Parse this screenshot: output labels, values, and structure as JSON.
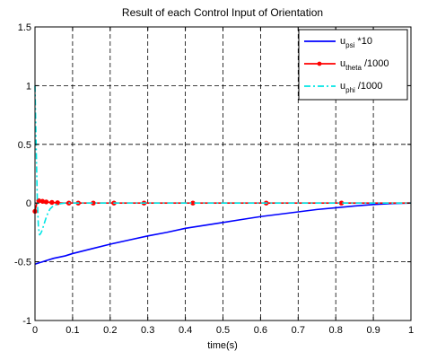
{
  "chart_data": {
    "type": "line",
    "title": "Result of each Control Input of Orientation",
    "xlabel": "time(s)",
    "ylabel": "",
    "xlim": [
      0,
      1
    ],
    "ylim": [
      -1,
      1.5
    ],
    "xticks": [
      0,
      0.1,
      0.2,
      0.3,
      0.4,
      0.5,
      0.6,
      0.7,
      0.8,
      0.9,
      1
    ],
    "xtick_labels": [
      "0",
      "0.1",
      "0.2",
      "0.3",
      "0.4",
      "0.5",
      "0.6",
      "0.7",
      "0.8",
      "0.9",
      "1"
    ],
    "yticks": [
      -1,
      -0.5,
      0,
      0.5,
      1,
      1.5
    ],
    "ytick_labels": [
      "-1",
      "-0.5",
      "0",
      "0.5",
      "1",
      "1.5"
    ],
    "grid": true,
    "grid_style": "dashed",
    "legend_position": "top-right",
    "series": [
      {
        "legend_main": "u",
        "legend_sub": "psi",
        "legend_suffix": " *10",
        "color": "#0000ff",
        "style": "solid",
        "marker": "none",
        "x": [
          0,
          0.01,
          0.02,
          0.03,
          0.05,
          0.08,
          0.1,
          0.15,
          0.2,
          0.25,
          0.3,
          0.35,
          0.4,
          0.45,
          0.5,
          0.55,
          0.6,
          0.65,
          0.7,
          0.75,
          0.8,
          0.85,
          0.9,
          0.95,
          1.0
        ],
        "y": [
          -0.52,
          -0.51,
          -0.5,
          -0.49,
          -0.47,
          -0.45,
          -0.43,
          -0.39,
          -0.35,
          -0.315,
          -0.28,
          -0.25,
          -0.215,
          -0.19,
          -0.165,
          -0.14,
          -0.115,
          -0.095,
          -0.075,
          -0.055,
          -0.04,
          -0.025,
          -0.012,
          -0.004,
          0.0
        ]
      },
      {
        "legend_main": "u",
        "legend_sub": "theta",
        "legend_suffix": " /1000",
        "color": "#ff0000",
        "style": "solid",
        "marker": "dot",
        "x": [
          0,
          0.005,
          0.01,
          0.02,
          0.03,
          0.04,
          0.05,
          0.06,
          0.08,
          0.1,
          0.15,
          0.2,
          0.3,
          0.42,
          0.6,
          0.8,
          1.0
        ],
        "y": [
          -0.07,
          0.0,
          0.02,
          0.015,
          0.01,
          0.006,
          0.004,
          0.002,
          0.0,
          0.0,
          0.0,
          0.0,
          0.0,
          0.0,
          0.0,
          0.0,
          0.0
        ],
        "marker_x": [
          0.0,
          0.01,
          0.02,
          0.03,
          0.045,
          0.06,
          0.09,
          0.115,
          0.155,
          0.21,
          0.29,
          0.42,
          0.615,
          0.815
        ],
        "marker_y": [
          -0.07,
          0.02,
          0.015,
          0.01,
          0.006,
          0.003,
          0.0,
          0.0,
          0.0,
          0.0,
          0.0,
          0.0,
          0.0,
          0.0
        ]
      },
      {
        "legend_main": "u",
        "legend_sub": "phi",
        "legend_suffix": " /1000",
        "color": "#00e5e5",
        "style": "dashdot",
        "marker": "none",
        "x": [
          0,
          0.003,
          0.006,
          0.009,
          0.012,
          0.015,
          0.018,
          0.022,
          0.026,
          0.03,
          0.035,
          0.04,
          0.05,
          0.06,
          0.07,
          0.08,
          0.1,
          0.15,
          0.2,
          0.3,
          0.5,
          0.7,
          0.9,
          1.0
        ],
        "y": [
          1.0,
          0.5,
          0.05,
          -0.2,
          -0.27,
          -0.26,
          -0.24,
          -0.2,
          -0.16,
          -0.12,
          -0.08,
          -0.05,
          -0.02,
          -0.01,
          -0.004,
          0.0,
          0.0,
          0.0,
          0.0,
          0.0,
          0.0,
          0.0,
          0.0,
          0.0
        ]
      }
    ]
  }
}
